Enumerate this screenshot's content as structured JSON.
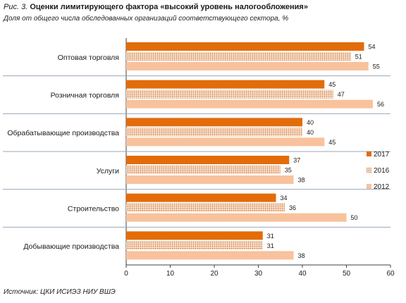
{
  "title": {
    "prefix": "Рис. 3.",
    "main": "Оценки лимитирующего фактора «высокий уровень налогообложения»"
  },
  "subtitle": "Доля от общего числа обследованных организаций соответствующего сектора, %",
  "source": "Источник: ЦКИ ИСИЭЗ НИУ ВШЭ",
  "chart_data": {
    "type": "bar",
    "orientation": "horizontal",
    "title": "Оценки лимитирующего фактора «высокий уровень налогообложения»",
    "subtitle": "Доля от общего числа обследованных организаций соответствующего сектора, %",
    "categories": [
      "Оптовая торговля",
      "Розничная торговля",
      "Обрабатывающие производства",
      "Услуги",
      "Строительство",
      "Добывающие производства"
    ],
    "series": [
      {
        "name": "2017",
        "values": [
          54,
          45,
          40,
          37,
          34,
          31
        ],
        "color": "#E36C0A",
        "pattern": "solid"
      },
      {
        "name": "2016",
        "values": [
          51,
          47,
          40,
          35,
          36,
          31
        ],
        "color": "#F2B98A",
        "pattern": "dotted"
      },
      {
        "name": "2012",
        "values": [
          55,
          56,
          45,
          38,
          50,
          38
        ],
        "color": "#F8C29C",
        "pattern": "solid"
      }
    ],
    "xlim": [
      0,
      60
    ],
    "xticks": [
      "0",
      "10",
      "20",
      "30",
      "40",
      "50",
      "60"
    ],
    "data_labels": true,
    "legend_position": "right",
    "grid": false,
    "category_separators": true
  }
}
